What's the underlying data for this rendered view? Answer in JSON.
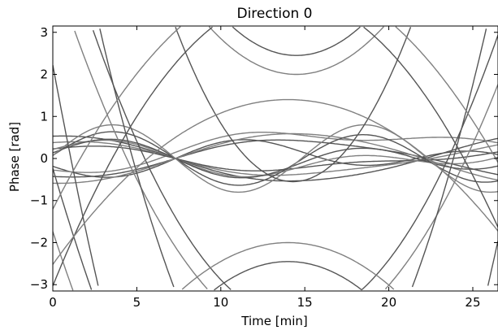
{
  "chart_data": {
    "type": "line",
    "title": "Direction 0",
    "xlabel": "Time [min]",
    "ylabel": "Phase [rad]",
    "xlim": [
      0,
      26.5
    ],
    "ylim": [
      -3.15,
      3.15
    ],
    "x_ticks": [
      0,
      5,
      10,
      15,
      20,
      25
    ],
    "x_tick_labels": [
      "0",
      "5",
      "10",
      "15",
      "20",
      "25"
    ],
    "y_ticks": [
      -3,
      -2,
      -1,
      0,
      1,
      2,
      3
    ],
    "y_tick_labels": [
      "−3",
      "−2",
      "−1",
      "0",
      "1",
      "2",
      "3"
    ],
    "grid": false,
    "legend": "none",
    "colors": {
      "dark": "#555555",
      "light": "#808080"
    },
    "t_axis": {
      "start": 0,
      "end": 26.5,
      "step": 0.1
    },
    "series": [
      {
        "color": "dark",
        "a": 0.3,
        "b": 7.2,
        "c": 0.2,
        "d": 0.0
      },
      {
        "color": "light",
        "a": 0.15,
        "b": 6.9,
        "c": 0.3,
        "d": 0.02
      },
      {
        "color": "dark",
        "a": 0.05,
        "b": 6.3,
        "c": 0.45,
        "d": 0.0
      },
      {
        "color": "light",
        "a": 0.02,
        "b": 6.0,
        "c": 0.6,
        "d": 0.0
      },
      {
        "color": "dark",
        "a": 0.0,
        "b": 0.0,
        "c": 0.1,
        "d": 0.0
      },
      {
        "color": "light",
        "a": 0.0,
        "b": 0.0,
        "c": 0.18,
        "d": 0.0
      },
      {
        "color": "dark",
        "a": 0.0,
        "b": 0.0,
        "c": 0.26,
        "d": 0.01
      },
      {
        "color": "light",
        "a": 0.0,
        "b": 0.0,
        "c": 0.34,
        "d": 0.0
      },
      {
        "color": "dark",
        "a": 0.0,
        "b": 0.0,
        "c": 0.42,
        "d": 0.0
      },
      {
        "color": "light",
        "a": 0.0,
        "b": 0.0,
        "c": 0.05,
        "d": 0.0
      },
      {
        "color": "dark",
        "a": 0.0,
        "b": 0.0,
        "c": 0.02,
        "d": 0.0
      },
      {
        "color": "light",
        "a": 0.0,
        "b": 0.0,
        "c": -0.05,
        "d": 0.0
      },
      {
        "color": "dark",
        "a": 0.0,
        "b": 0.0,
        "c": -0.12,
        "d": 0.0
      },
      {
        "color": "light",
        "a": 0.0,
        "b": 0.0,
        "c": -0.22,
        "d": 0.0
      },
      {
        "color": "dark",
        "a": 0.0,
        "b": 0.0,
        "c": -0.3,
        "d": 0.0
      },
      {
        "color": "light",
        "a": 0.0,
        "b": 0.0,
        "c": -0.38,
        "d": 0.0
      },
      {
        "color": "dark",
        "a": -0.03,
        "b": 6.0,
        "c": -0.55,
        "d": 0.0
      },
      {
        "color": "light",
        "a": -0.06,
        "b": 6.5,
        "c": -0.4,
        "d": 0.0
      },
      {
        "color": "dark",
        "a": -0.1,
        "b": 6.8,
        "c": -0.25,
        "d": 0.0
      },
      {
        "color": "light",
        "a": -0.25,
        "b": 7.0,
        "c": -0.25,
        "d": 0.0
      },
      {
        "color": "dark",
        "a": -0.35,
        "b": 7.2,
        "c": -0.15,
        "d": 0.0
      },
      {
        "color": "dark",
        "a": -0.6,
        "b": 7.4,
        "c": -0.05,
        "d": 0.0
      },
      {
        "color": "light",
        "a": -0.8,
        "b": 7.5,
        "c": 0.0,
        "d": 0.0
      }
    ],
    "wrap_series": [
      {
        "color": "dark",
        "offset": 2.45,
        "k": 0.047,
        "center": 14.5
      },
      {
        "color": "light",
        "offset": 2.0,
        "k": 0.042,
        "center": 14.5
      },
      {
        "color": "dark",
        "offset": -0.55,
        "k": 0.075,
        "center": 14.3
      },
      {
        "color": "light",
        "offset": -2.0,
        "k": -0.028,
        "center": 14.0
      },
      {
        "color": "dark",
        "offset": -2.45,
        "k": -0.035,
        "center": 14.0
      },
      {
        "color": "light",
        "offset": 1.4,
        "k": -0.02,
        "center": 14.0
      }
    ]
  }
}
